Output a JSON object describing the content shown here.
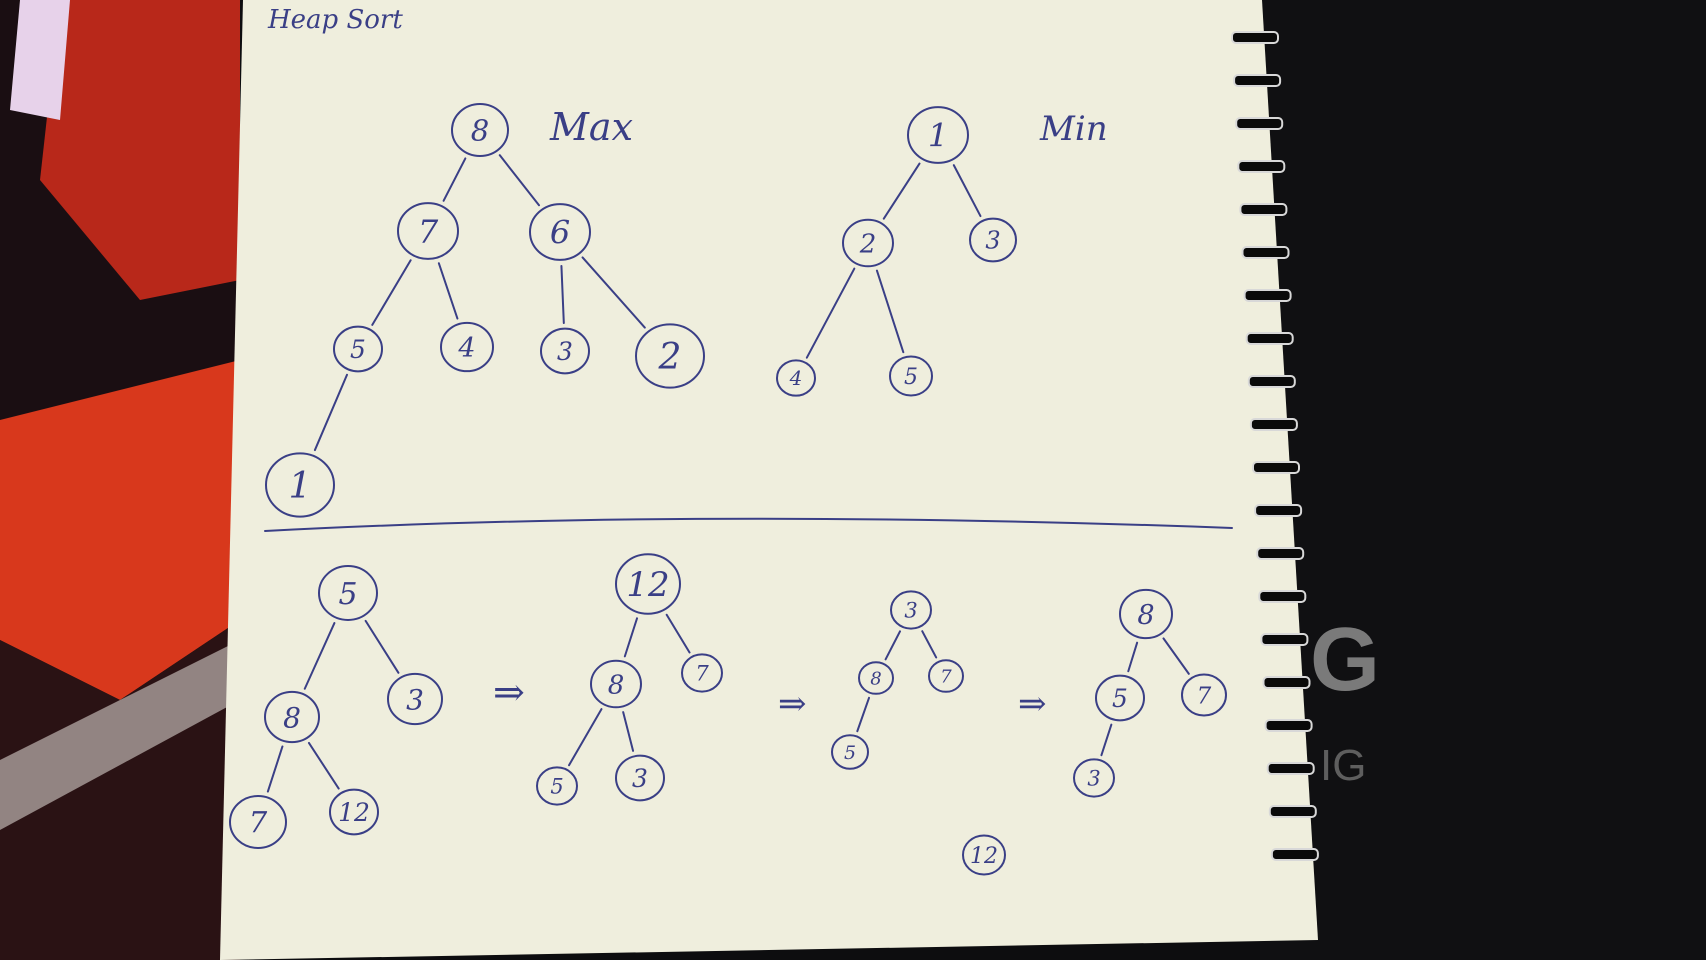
{
  "title": "Heap Sort",
  "labels": {
    "max": "Max",
    "min": "Min"
  },
  "arrow": "⇒",
  "colors": {
    "paper": "#efeedd",
    "ink": "#3a3f86",
    "desk": "#0d0d0f",
    "accent_red": "#d8381c"
  },
  "max_heap": {
    "nodes": [
      "8",
      "7",
      "6",
      "5",
      "4",
      "3",
      "2",
      "1"
    ],
    "edges": [
      [
        "8",
        "7"
      ],
      [
        "8",
        "6"
      ],
      [
        "7",
        "5"
      ],
      [
        "7",
        "4"
      ],
      [
        "6",
        "3"
      ],
      [
        "6",
        "2"
      ],
      [
        "5",
        "1"
      ]
    ]
  },
  "min_heap": {
    "nodes": [
      "1",
      "2",
      "3",
      "4",
      "5"
    ],
    "edges": [
      [
        "1",
        "2"
      ],
      [
        "1",
        "3"
      ],
      [
        "2",
        "4"
      ],
      [
        "2",
        "5"
      ]
    ]
  },
  "sort_steps": [
    {
      "nodes": [
        "5",
        "8",
        "3",
        "7",
        "12"
      ],
      "edges": [
        [
          0,
          1
        ],
        [
          0,
          2
        ],
        [
          1,
          3
        ],
        [
          1,
          4
        ]
      ]
    },
    {
      "nodes": [
        "12",
        "8",
        "7",
        "5",
        "3"
      ],
      "edges": [
        [
          0,
          1
        ],
        [
          0,
          2
        ],
        [
          1,
          3
        ],
        [
          1,
          4
        ]
      ]
    },
    {
      "nodes": [
        "3",
        "8",
        "7",
        "5"
      ],
      "edges": [
        [
          0,
          1
        ],
        [
          0,
          2
        ],
        [
          1,
          3
        ]
      ],
      "removed": "12"
    },
    {
      "nodes": [
        "8",
        "5",
        "7",
        "3"
      ],
      "edges": [
        [
          0,
          1
        ],
        [
          0,
          2
        ],
        [
          1,
          3
        ]
      ]
    }
  ]
}
